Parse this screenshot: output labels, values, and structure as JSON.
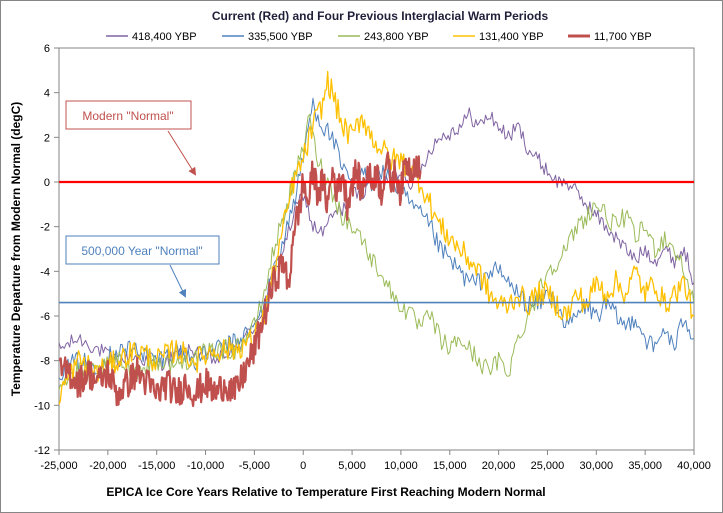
{
  "chart_data": {
    "type": "line",
    "title": "Current (Red) and Four Previous Interglacial Warm Periods",
    "xlabel": "EPICA Ice Core Years  Relative to Temperature First Reaching Modern Normal",
    "ylabel": "Temperature Departure from Modern Normal (degC)",
    "xlim": [
      -25000,
      40000
    ],
    "ylim": [
      -12,
      6
    ],
    "xticks": [
      -25000,
      -20000,
      -15000,
      -10000,
      -5000,
      0,
      5000,
      10000,
      15000,
      20000,
      25000,
      30000,
      35000,
      40000
    ],
    "xtick_labels": [
      "-25,000",
      "-20,000",
      "-15,000",
      "-10,000",
      "-5,000",
      "0",
      "5,000",
      "10,000",
      "15,000",
      "20,000",
      "25,000",
      "30,000",
      "35,000",
      "40,000"
    ],
    "yticks": [
      -12,
      -10,
      -8,
      -6,
      -4,
      -2,
      0,
      2,
      4,
      6
    ],
    "ytick_labels": [
      "-12",
      "-10",
      "-8",
      "-6",
      "-4",
      "-2",
      "0",
      "2",
      "4",
      "6"
    ],
    "legend": {
      "placement": "top"
    },
    "series": [
      {
        "name": "418,400 YBP",
        "color": "#8064a2",
        "points": [
          [
            -25000,
            -7.5
          ],
          [
            -23000,
            -7.0
          ],
          [
            -21000,
            -7.5
          ],
          [
            -19000,
            -8.0
          ],
          [
            -17000,
            -7.8
          ],
          [
            -15000,
            -8.2
          ],
          [
            -13000,
            -7.8
          ],
          [
            -11000,
            -7.5
          ],
          [
            -9000,
            -8.0
          ],
          [
            -7000,
            -7.5
          ],
          [
            -5000,
            -6.5
          ],
          [
            -4000,
            -5.5
          ],
          [
            -3000,
            -4.0
          ],
          [
            -2000,
            -3.0
          ],
          [
            -1000,
            -1.5
          ],
          [
            0,
            -0.5
          ],
          [
            1000,
            -2.0
          ],
          [
            2000,
            -2.3
          ],
          [
            3000,
            -1.5
          ],
          [
            4000,
            -1.2
          ],
          [
            5000,
            -0.5
          ],
          [
            6000,
            -0.5
          ],
          [
            7000,
            0.2
          ],
          [
            8000,
            0.0
          ],
          [
            9000,
            0.0
          ],
          [
            10000,
            0.5
          ],
          [
            11000,
            0.0
          ],
          [
            12000,
            0.5
          ],
          [
            13000,
            1.5
          ],
          [
            14000,
            2.0
          ],
          [
            15000,
            2.2
          ],
          [
            16000,
            2.5
          ],
          [
            17000,
            3.0
          ],
          [
            18000,
            2.5
          ],
          [
            19000,
            3.0
          ],
          [
            20000,
            2.5
          ],
          [
            21000,
            2.0
          ],
          [
            22000,
            2.5
          ],
          [
            23000,
            1.5
          ],
          [
            24000,
            1.0
          ],
          [
            25000,
            0.5
          ],
          [
            26000,
            0.0
          ],
          [
            27000,
            0.0
          ],
          [
            28000,
            -0.5
          ],
          [
            29000,
            -1.0
          ],
          [
            30000,
            -1.5
          ],
          [
            31000,
            -2.0
          ],
          [
            32000,
            -2.5
          ],
          [
            33000,
            -3.0
          ],
          [
            34000,
            -3.5
          ],
          [
            35000,
            -3.0
          ],
          [
            36000,
            -3.5
          ],
          [
            37000,
            -3.0
          ],
          [
            38000,
            -3.5
          ],
          [
            39000,
            -3.0
          ],
          [
            40000,
            -4.5
          ]
        ]
      },
      {
        "name": "335,500 YBP",
        "color": "#4f81bd",
        "points": [
          [
            -25000,
            -8.5
          ],
          [
            -23000,
            -8.0
          ],
          [
            -21000,
            -8.2
          ],
          [
            -19000,
            -7.5
          ],
          [
            -17000,
            -7.5
          ],
          [
            -15000,
            -8.0
          ],
          [
            -13000,
            -7.5
          ],
          [
            -11000,
            -8.0
          ],
          [
            -9000,
            -7.5
          ],
          [
            -7000,
            -7.2
          ],
          [
            -5000,
            -6.5
          ],
          [
            -4000,
            -5.5
          ],
          [
            -3000,
            -4.0
          ],
          [
            -2000,
            -2.5
          ],
          [
            -1000,
            -1.0
          ],
          [
            0,
            1.0
          ],
          [
            500,
            2.5
          ],
          [
            1000,
            3.5
          ],
          [
            1500,
            3.0
          ],
          [
            2000,
            2.5
          ],
          [
            3000,
            2.0
          ],
          [
            4000,
            0.5
          ],
          [
            5000,
            0.0
          ],
          [
            6000,
            0.5
          ],
          [
            7000,
            0.0
          ],
          [
            8000,
            0.5
          ],
          [
            9000,
            0.0
          ],
          [
            10000,
            -0.5
          ],
          [
            11000,
            -1.0
          ],
          [
            12000,
            -1.5
          ],
          [
            13000,
            -2.0
          ],
          [
            14000,
            -3.0
          ],
          [
            15000,
            -3.5
          ],
          [
            16000,
            -4.0
          ],
          [
            17000,
            -4.5
          ],
          [
            18000,
            -4.5
          ],
          [
            19000,
            -4.0
          ],
          [
            20000,
            -4.0
          ],
          [
            21000,
            -4.5
          ],
          [
            22000,
            -5.0
          ],
          [
            23000,
            -5.5
          ],
          [
            24000,
            -5.5
          ],
          [
            25000,
            -5.0
          ],
          [
            26000,
            -5.5
          ],
          [
            27000,
            -6.5
          ],
          [
            28000,
            -6.0
          ],
          [
            29000,
            -5.5
          ],
          [
            30000,
            -6.0
          ],
          [
            31000,
            -5.5
          ],
          [
            32000,
            -6.0
          ],
          [
            33000,
            -6.5
          ],
          [
            34000,
            -6.0
          ],
          [
            35000,
            -7.0
          ],
          [
            36000,
            -7.5
          ],
          [
            37000,
            -6.5
          ],
          [
            38000,
            -7.5
          ],
          [
            39000,
            -6.0
          ],
          [
            40000,
            -7.0
          ]
        ]
      },
      {
        "name": "243,800 YBP",
        "color": "#9bbb59",
        "points": [
          [
            -25000,
            -9.0
          ],
          [
            -23000,
            -8.5
          ],
          [
            -21000,
            -8.5
          ],
          [
            -19000,
            -8.0
          ],
          [
            -17000,
            -8.5
          ],
          [
            -15000,
            -8.0
          ],
          [
            -13000,
            -8.2
          ],
          [
            -11000,
            -7.8
          ],
          [
            -9000,
            -7.5
          ],
          [
            -7000,
            -7.5
          ],
          [
            -5000,
            -6.5
          ],
          [
            -4000,
            -5.0
          ],
          [
            -3000,
            -3.0
          ],
          [
            -2000,
            -1.5
          ],
          [
            -1000,
            0.0
          ],
          [
            0,
            1.5
          ],
          [
            500,
            3.0
          ],
          [
            1000,
            2.0
          ],
          [
            1500,
            1.0
          ],
          [
            2000,
            0.5
          ],
          [
            3000,
            -0.5
          ],
          [
            4000,
            -1.5
          ],
          [
            5000,
            -2.0
          ],
          [
            6000,
            -2.5
          ],
          [
            7000,
            -3.5
          ],
          [
            8000,
            -4.0
          ],
          [
            9000,
            -5.0
          ],
          [
            10000,
            -5.5
          ],
          [
            11000,
            -6.0
          ],
          [
            12000,
            -6.5
          ],
          [
            13000,
            -6.0
          ],
          [
            14000,
            -7.0
          ],
          [
            15000,
            -7.5
          ],
          [
            16000,
            -7.0
          ],
          [
            17000,
            -7.5
          ],
          [
            18000,
            -8.0
          ],
          [
            19000,
            -8.5
          ],
          [
            20000,
            -8.0
          ],
          [
            21000,
            -8.5
          ],
          [
            22000,
            -7.0
          ],
          [
            23000,
            -6.0
          ],
          [
            24000,
            -5.0
          ],
          [
            25000,
            -4.0
          ],
          [
            26000,
            -3.5
          ],
          [
            27000,
            -3.0
          ],
          [
            28000,
            -2.0
          ],
          [
            29000,
            -1.5
          ],
          [
            30000,
            -1.0
          ],
          [
            31000,
            -1.5
          ],
          [
            32000,
            -2.0
          ],
          [
            33000,
            -1.5
          ],
          [
            34000,
            -2.5
          ],
          [
            35000,
            -2.0
          ],
          [
            36000,
            -3.0
          ],
          [
            37000,
            -2.5
          ],
          [
            38000,
            -3.0
          ],
          [
            39000,
            -4.0
          ],
          [
            40000,
            -5.5
          ]
        ]
      },
      {
        "name": "131,400 YBP",
        "color": "#ffc000",
        "points": [
          [
            -25000,
            -9.5
          ],
          [
            -23000,
            -8.0
          ],
          [
            -21000,
            -8.5
          ],
          [
            -19000,
            -8.0
          ],
          [
            -17000,
            -7.5
          ],
          [
            -15000,
            -8.0
          ],
          [
            -13000,
            -7.5
          ],
          [
            -11000,
            -8.0
          ],
          [
            -9000,
            -7.5
          ],
          [
            -7000,
            -7.5
          ],
          [
            -5000,
            -7.0
          ],
          [
            -4000,
            -6.0
          ],
          [
            -3000,
            -4.0
          ],
          [
            -2000,
            -2.0
          ],
          [
            -1000,
            0.0
          ],
          [
            0,
            1.0
          ],
          [
            1000,
            2.5
          ],
          [
            2000,
            3.5
          ],
          [
            2500,
            4.5
          ],
          [
            3000,
            4.0
          ],
          [
            4000,
            2.5
          ],
          [
            5000,
            2.0
          ],
          [
            6000,
            3.0
          ],
          [
            7000,
            2.0
          ],
          [
            8000,
            1.5
          ],
          [
            9000,
            1.0
          ],
          [
            10000,
            1.0
          ],
          [
            11000,
            0.5
          ],
          [
            12000,
            0.0
          ],
          [
            13000,
            -1.0
          ],
          [
            14000,
            -2.0
          ],
          [
            15000,
            -2.5
          ],
          [
            16000,
            -3.0
          ],
          [
            17000,
            -3.5
          ],
          [
            18000,
            -4.0
          ],
          [
            19000,
            -5.0
          ],
          [
            20000,
            -5.5
          ],
          [
            21000,
            -5.5
          ],
          [
            22000,
            -5.0
          ],
          [
            23000,
            -5.5
          ],
          [
            24000,
            -5.0
          ],
          [
            25000,
            -5.0
          ],
          [
            26000,
            -5.5
          ],
          [
            27000,
            -6.0
          ],
          [
            28000,
            -5.0
          ],
          [
            29000,
            -5.5
          ],
          [
            30000,
            -4.5
          ],
          [
            31000,
            -5.0
          ],
          [
            32000,
            -4.5
          ],
          [
            33000,
            -5.0
          ],
          [
            34000,
            -4.0
          ],
          [
            35000,
            -5.0
          ],
          [
            36000,
            -4.5
          ],
          [
            37000,
            -5.5
          ],
          [
            38000,
            -5.0
          ],
          [
            39000,
            -4.5
          ],
          [
            40000,
            -6.0
          ]
        ]
      },
      {
        "name": "11,700 YBP",
        "color": "#c0504d",
        "points": [
          [
            -25000,
            -8.5
          ],
          [
            -24000,
            -8.5
          ],
          [
            -23000,
            -9.0
          ],
          [
            -22000,
            -8.5
          ],
          [
            -21000,
            -9.0
          ],
          [
            -20000,
            -8.5
          ],
          [
            -19000,
            -9.5
          ],
          [
            -18000,
            -9.0
          ],
          [
            -17000,
            -8.5
          ],
          [
            -16000,
            -9.0
          ],
          [
            -15000,
            -9.5
          ],
          [
            -14000,
            -9.0
          ],
          [
            -13000,
            -9.5
          ],
          [
            -12000,
            -9.0
          ],
          [
            -11000,
            -9.5
          ],
          [
            -10000,
            -9.0
          ],
          [
            -9000,
            -9.5
          ],
          [
            -8000,
            -9.0
          ],
          [
            -7000,
            -9.5
          ],
          [
            -6000,
            -8.5
          ],
          [
            -5000,
            -7.5
          ],
          [
            -4000,
            -6.0
          ],
          [
            -3000,
            -4.5
          ],
          [
            -2000,
            -3.5
          ],
          [
            -1500,
            -5.0
          ],
          [
            -1000,
            -2.0
          ],
          [
            -500,
            -1.5
          ],
          [
            0,
            0.0
          ],
          [
            500,
            -1.0
          ],
          [
            1000,
            0.5
          ],
          [
            1500,
            -0.5
          ],
          [
            2000,
            0.0
          ],
          [
            2500,
            -1.0
          ],
          [
            3000,
            0.5
          ],
          [
            3500,
            -0.5
          ],
          [
            4000,
            0.5
          ],
          [
            4500,
            -1.0
          ],
          [
            5000,
            0.0
          ],
          [
            5500,
            0.5
          ],
          [
            6000,
            -0.5
          ],
          [
            6500,
            0.5
          ],
          [
            7000,
            0.0
          ],
          [
            7500,
            0.5
          ],
          [
            8000,
            -0.5
          ],
          [
            8500,
            1.0
          ],
          [
            9000,
            0.0
          ],
          [
            9500,
            0.5
          ],
          [
            10000,
            -0.5
          ],
          [
            10500,
            1.0
          ],
          [
            11000,
            0.5
          ],
          [
            11500,
            1.0
          ],
          [
            12000,
            0.5
          ]
        ]
      }
    ],
    "reference_lines": [
      {
        "name": "Modern \"Normal\"",
        "y": 0,
        "color": "#ff0000"
      },
      {
        "name": "500,000 Year \"Normal\"",
        "y": -5.4,
        "color": "#4f81bd"
      }
    ],
    "annotations": [
      {
        "text": "Modern \"Normal\"",
        "color": "#c0504d",
        "points_to_y": 0
      },
      {
        "text": "500,000 Year \"Normal\"",
        "color": "#4f81bd",
        "points_to_y": -5.4
      }
    ]
  }
}
